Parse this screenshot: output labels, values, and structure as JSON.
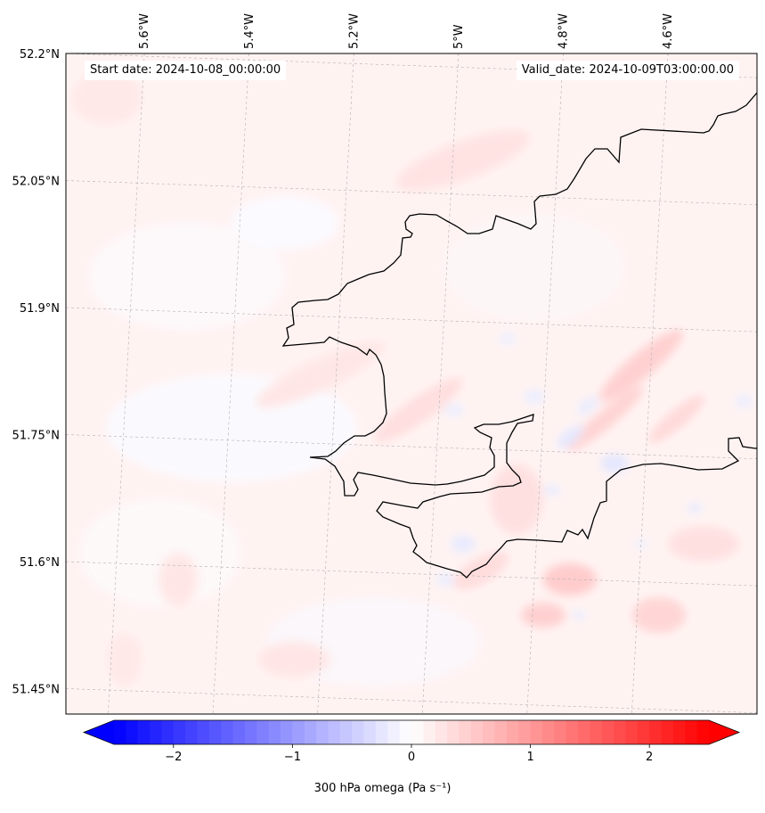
{
  "map": {
    "start_date": "Start date: 2024-10-08_00:00:00",
    "valid_date": "Valid_date: 2024-10-09T03:00:00.00",
    "longitude_labels": [
      "5.6°W",
      "5.4°W",
      "5.2°W",
      "5°W",
      "4.8°W",
      "4.6°W"
    ],
    "latitude_labels": [
      "52.2°N",
      "52.05°N",
      "51.9°N",
      "51.75°N",
      "51.6°N",
      "51.45°N"
    ],
    "longitudes": [
      -5.6,
      -5.4,
      -5.2,
      -5.0,
      -4.8,
      -4.6
    ],
    "latitudes": [
      52.2,
      52.05,
      51.9,
      51.75,
      51.6,
      51.45
    ],
    "extent": {
      "lon_min": -5.75,
      "lon_max": -4.43,
      "lat_min": 51.42,
      "lat_max": 52.2
    },
    "coastline_color": "#000000",
    "gridlines": true
  },
  "colorbar": {
    "label": "300 hPa omega (Pa s⁻¹)",
    "tick_labels": [
      "−2",
      "−1",
      "0",
      "1",
      "2"
    ],
    "tick_values": [
      -2,
      -1,
      0,
      1,
      2
    ],
    "range": [
      -2.5,
      2.5
    ],
    "colormap": "bwr",
    "extend": "both",
    "min_color": "#0000ff",
    "mid_color": "#ffffff",
    "max_color": "#ff0000"
  }
}
